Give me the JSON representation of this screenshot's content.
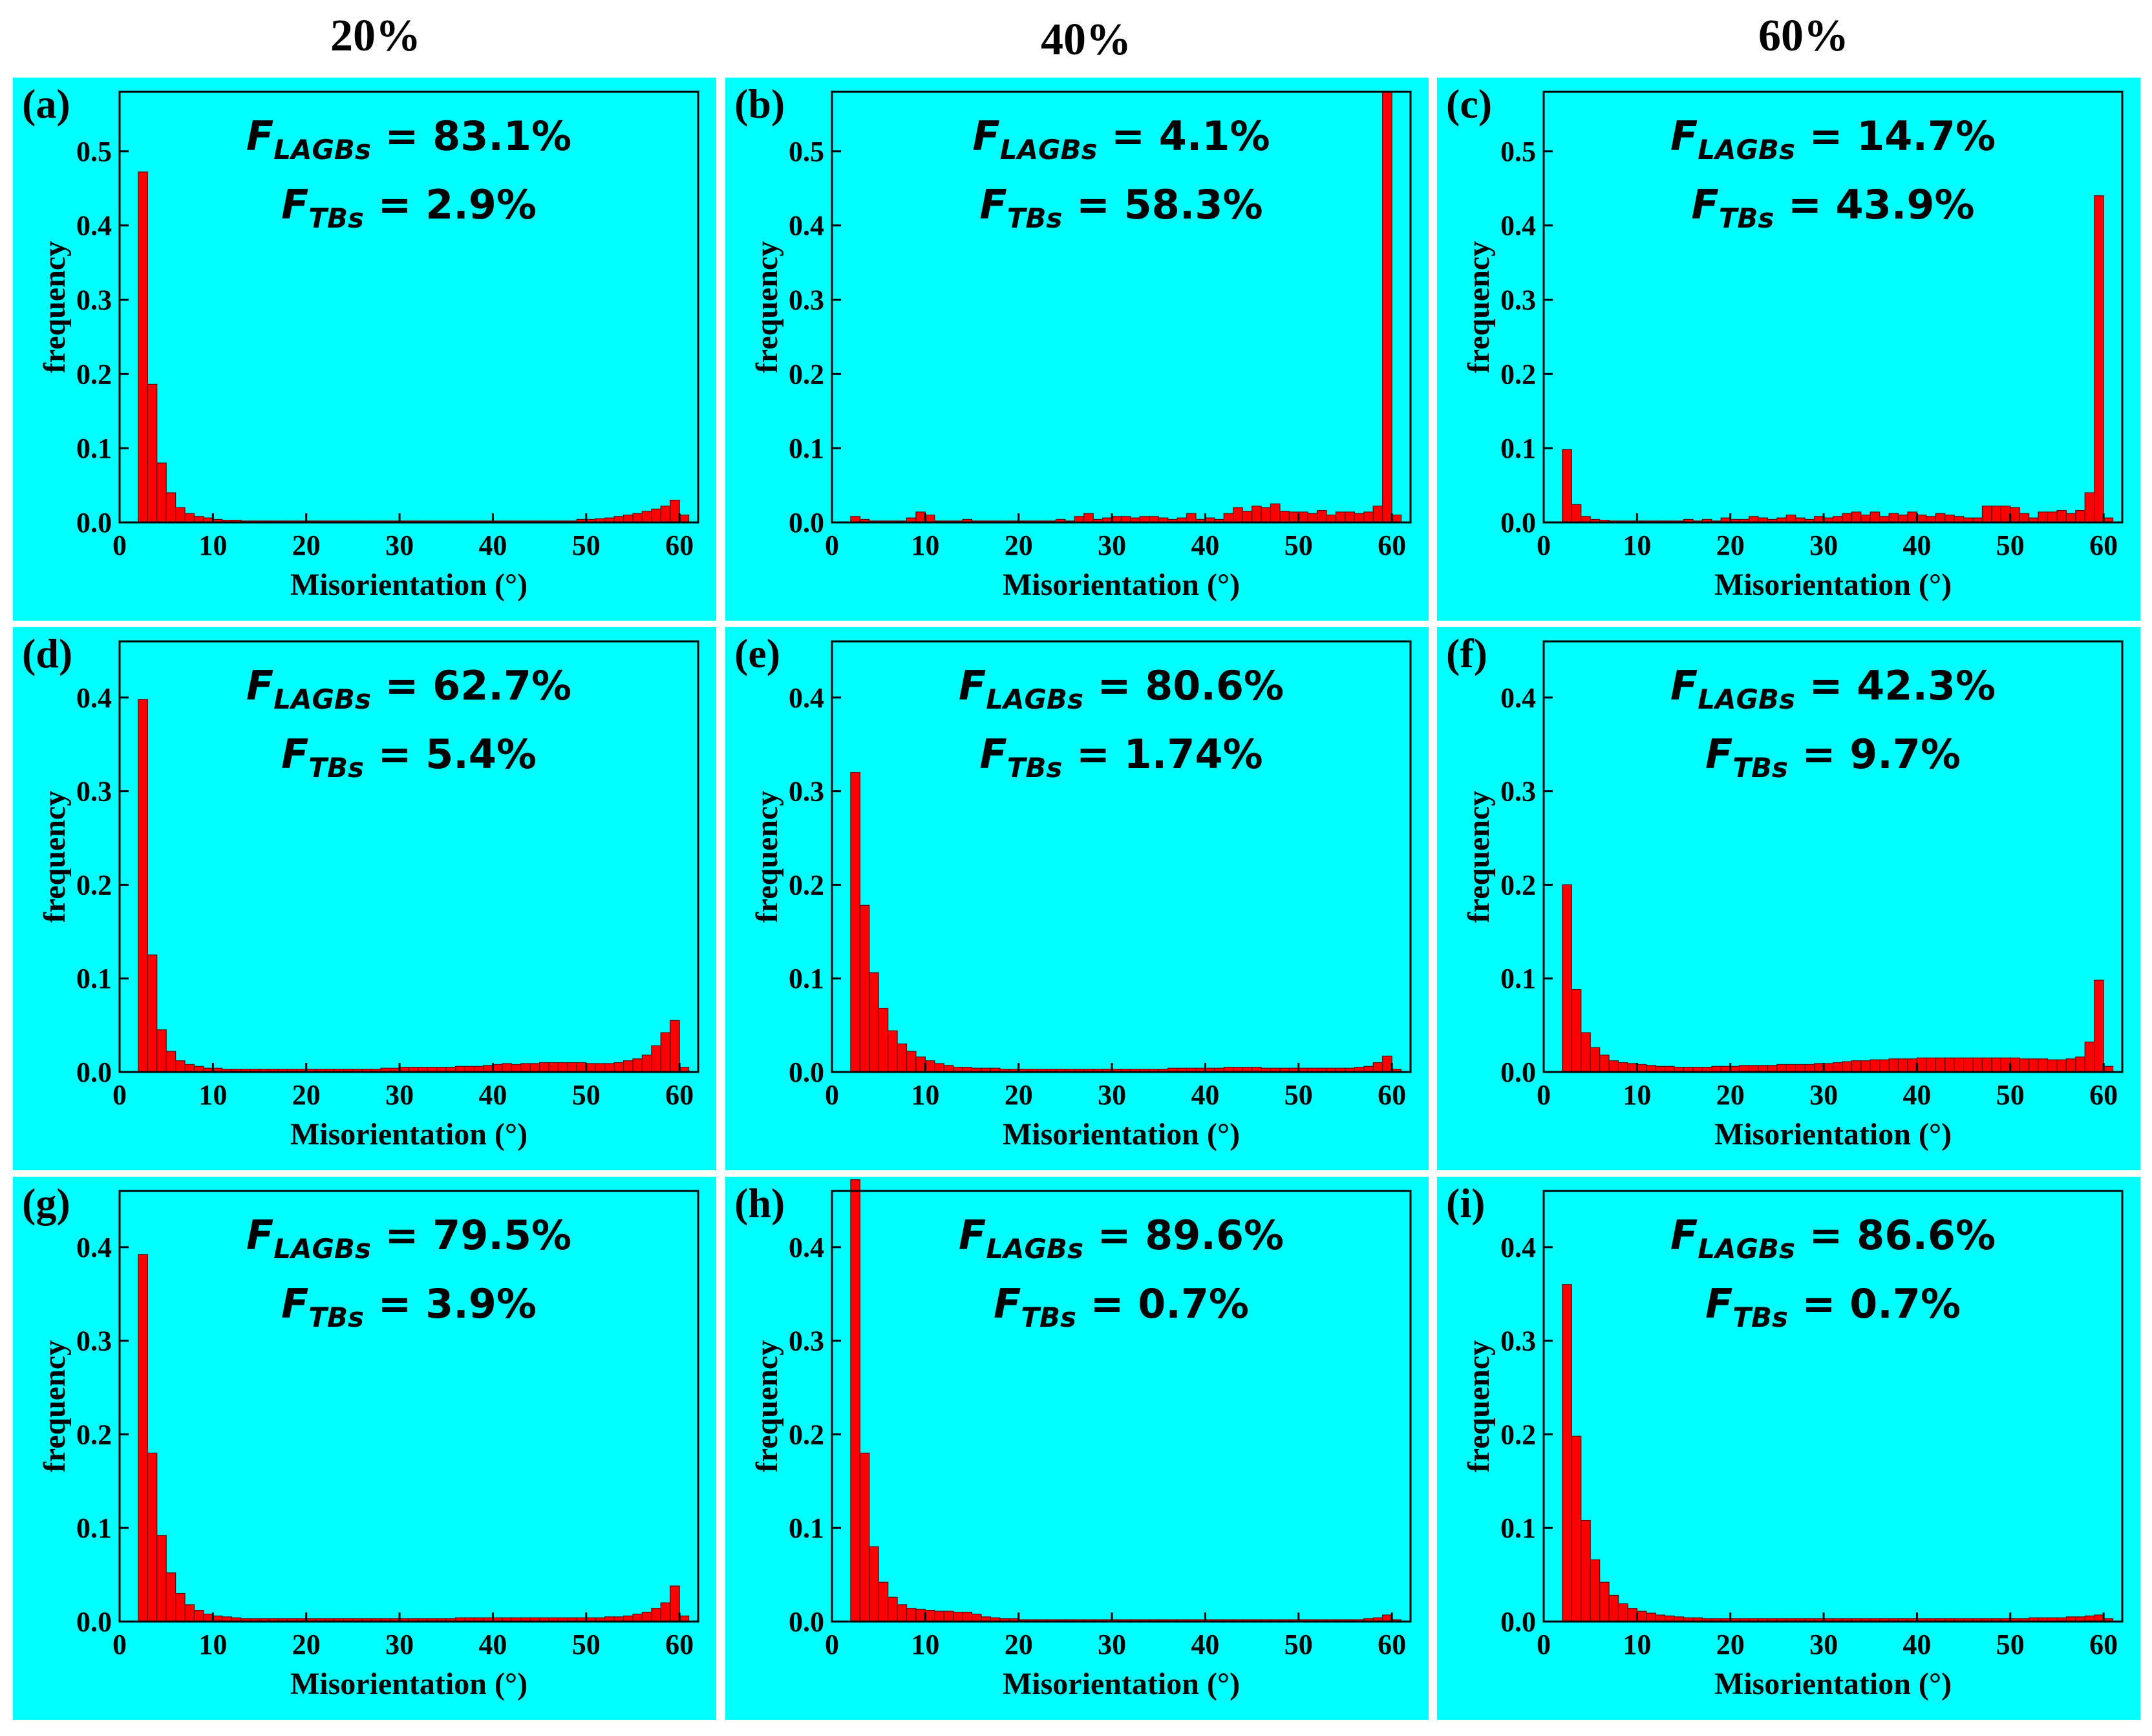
{
  "figure": {
    "column_titles": [
      "20%",
      "40%",
      "60%"
    ]
  },
  "chart_data": [
    {
      "type": "bar",
      "label": "(a)",
      "title": "",
      "xlabel": "Misorientation (°)",
      "ylabel": "frequency",
      "xlim": [
        0,
        62
      ],
      "ylim": [
        0,
        0.58
      ],
      "xticks": [
        0,
        10,
        20,
        30,
        40,
        50,
        60
      ],
      "yticks": [
        0.0,
        0.1,
        0.2,
        0.3,
        0.4,
        0.5
      ],
      "ytick_labels": [
        "0.0",
        "0.1",
        "0.2",
        "0.3",
        "0.4",
        "0.5"
      ],
      "annotation": {
        "lagb_label": "F",
        "lagb_sub": "LAGBs",
        "lagb_value": " = 83.1%",
        "tb_label": "F",
        "tb_sub": "TBs",
        "tb_value": " = 2.9%"
      },
      "bin_start": 2,
      "bin_width": 1,
      "values": [
        0.472,
        0.186,
        0.08,
        0.04,
        0.02,
        0.012,
        0.008,
        0.006,
        0.004,
        0.003,
        0.003,
        0.002,
        0.002,
        0.002,
        0.002,
        0.002,
        0.002,
        0.002,
        0.002,
        0.002,
        0.002,
        0.002,
        0.002,
        0.002,
        0.002,
        0.002,
        0.002,
        0.002,
        0.002,
        0.002,
        0.002,
        0.002,
        0.002,
        0.002,
        0.002,
        0.002,
        0.002,
        0.002,
        0.002,
        0.002,
        0.002,
        0.002,
        0.002,
        0.002,
        0.002,
        0.002,
        0.002,
        0.004,
        0.004,
        0.005,
        0.006,
        0.008,
        0.01,
        0.012,
        0.015,
        0.018,
        0.022,
        0.03,
        0.01
      ]
    },
    {
      "type": "bar",
      "label": "(b)",
      "title": "",
      "xlabel": "Misorientation (°)",
      "ylabel": "frequency",
      "xlim": [
        0,
        62
      ],
      "ylim": [
        0,
        0.58
      ],
      "xticks": [
        0,
        10,
        20,
        30,
        40,
        50,
        60
      ],
      "yticks": [
        0.0,
        0.1,
        0.2,
        0.3,
        0.4,
        0.5
      ],
      "ytick_labels": [
        "0.0",
        "0.1",
        "0.2",
        "0.3",
        "0.4",
        "0.5"
      ],
      "annotation": {
        "lagb_label": "F",
        "lagb_sub": "LAGBs",
        "lagb_value": " = 4.1%",
        "tb_label": "F",
        "tb_sub": "TBs",
        "tb_value": " = 58.3%"
      },
      "bin_start": 2,
      "bin_width": 1,
      "values": [
        0.008,
        0.004,
        0.002,
        0.002,
        0.002,
        0.002,
        0.006,
        0.014,
        0.01,
        0.002,
        0.002,
        0.002,
        0.004,
        0.002,
        0.002,
        0.002,
        0.002,
        0.002,
        0.002,
        0.002,
        0.002,
        0.002,
        0.004,
        0.002,
        0.008,
        0.012,
        0.004,
        0.006,
        0.008,
        0.008,
        0.006,
        0.008,
        0.008,
        0.006,
        0.004,
        0.006,
        0.012,
        0.004,
        0.006,
        0.004,
        0.012,
        0.02,
        0.015,
        0.022,
        0.02,
        0.025,
        0.015,
        0.014,
        0.014,
        0.012,
        0.016,
        0.01,
        0.014,
        0.014,
        0.012,
        0.014,
        0.022,
        0.58,
        0.01
      ]
    },
    {
      "type": "bar",
      "label": "(c)",
      "title": "",
      "xlabel": "Misorientation (°)",
      "ylabel": "frequency",
      "xlim": [
        0,
        62
      ],
      "ylim": [
        0,
        0.58
      ],
      "xticks": [
        0,
        10,
        20,
        30,
        40,
        50,
        60
      ],
      "yticks": [
        0.0,
        0.1,
        0.2,
        0.3,
        0.4,
        0.5
      ],
      "ytick_labels": [
        "0.0",
        "0.1",
        "0.2",
        "0.3",
        "0.4",
        "0.5"
      ],
      "annotation": {
        "lagb_label": "F",
        "lagb_sub": "LAGBs",
        "lagb_value": " = 14.7%",
        "tb_label": "F",
        "tb_sub": "TBs",
        "tb_value": " = 43.9%"
      },
      "bin_start": 2,
      "bin_width": 1,
      "values": [
        0.098,
        0.024,
        0.008,
        0.004,
        0.003,
        0.002,
        0.002,
        0.002,
        0.002,
        0.002,
        0.002,
        0.002,
        0.002,
        0.004,
        0.002,
        0.004,
        0.002,
        0.006,
        0.004,
        0.004,
        0.008,
        0.006,
        0.004,
        0.006,
        0.01,
        0.006,
        0.004,
        0.008,
        0.006,
        0.008,
        0.012,
        0.014,
        0.01,
        0.014,
        0.008,
        0.012,
        0.01,
        0.014,
        0.01,
        0.008,
        0.012,
        0.01,
        0.008,
        0.006,
        0.006,
        0.022,
        0.022,
        0.022,
        0.02,
        0.012,
        0.006,
        0.014,
        0.014,
        0.016,
        0.012,
        0.016,
        0.04,
        0.44,
        0.006
      ]
    },
    {
      "type": "bar",
      "label": "(d)",
      "title": "",
      "xlabel": "Misorientation (°)",
      "ylabel": "frequency",
      "xlim": [
        0,
        62
      ],
      "ylim": [
        0,
        0.46
      ],
      "xticks": [
        0,
        10,
        20,
        30,
        40,
        50,
        60
      ],
      "yticks": [
        0.0,
        0.1,
        0.2,
        0.3,
        0.4
      ],
      "ytick_labels": [
        "0.0",
        "0.1",
        "0.2",
        "0.3",
        "0.4"
      ],
      "annotation": {
        "lagb_label": "F",
        "lagb_sub": "LAGBs",
        "lagb_value": " = 62.7%",
        "tb_label": "F",
        "tb_sub": "TBs",
        "tb_value": " = 5.4%"
      },
      "bin_start": 2,
      "bin_width": 1,
      "values": [
        0.398,
        0.125,
        0.045,
        0.022,
        0.012,
        0.008,
        0.006,
        0.004,
        0.004,
        0.003,
        0.003,
        0.003,
        0.003,
        0.003,
        0.003,
        0.003,
        0.003,
        0.003,
        0.003,
        0.003,
        0.003,
        0.003,
        0.003,
        0.003,
        0.003,
        0.003,
        0.004,
        0.004,
        0.005,
        0.005,
        0.005,
        0.005,
        0.005,
        0.005,
        0.006,
        0.006,
        0.006,
        0.007,
        0.008,
        0.009,
        0.008,
        0.009,
        0.009,
        0.01,
        0.01,
        0.01,
        0.01,
        0.01,
        0.009,
        0.009,
        0.009,
        0.01,
        0.012,
        0.014,
        0.018,
        0.028,
        0.042,
        0.055,
        0.005
      ]
    },
    {
      "type": "bar",
      "label": "(e)",
      "title": "",
      "xlabel": "Misorientation (°)",
      "ylabel": "frequency",
      "xlim": [
        0,
        62
      ],
      "ylim": [
        0,
        0.46
      ],
      "xticks": [
        0,
        10,
        20,
        30,
        40,
        50,
        60
      ],
      "yticks": [
        0.0,
        0.1,
        0.2,
        0.3,
        0.4
      ],
      "ytick_labels": [
        "0.0",
        "0.1",
        "0.2",
        "0.3",
        "0.4"
      ],
      "annotation": {
        "lagb_label": "F",
        "lagb_sub": "LAGBs",
        "lagb_value": " = 80.6%",
        "tb_label": "F",
        "tb_sub": "TBs",
        "tb_value": " = 1.74%"
      },
      "bin_start": 2,
      "bin_width": 1,
      "values": [
        0.32,
        0.178,
        0.106,
        0.068,
        0.044,
        0.03,
        0.022,
        0.016,
        0.012,
        0.009,
        0.007,
        0.005,
        0.005,
        0.004,
        0.004,
        0.004,
        0.003,
        0.003,
        0.003,
        0.003,
        0.003,
        0.003,
        0.003,
        0.003,
        0.003,
        0.003,
        0.003,
        0.003,
        0.003,
        0.003,
        0.003,
        0.003,
        0.003,
        0.003,
        0.004,
        0.004,
        0.004,
        0.004,
        0.004,
        0.004,
        0.005,
        0.005,
        0.005,
        0.005,
        0.004,
        0.004,
        0.004,
        0.004,
        0.004,
        0.004,
        0.004,
        0.004,
        0.004,
        0.004,
        0.005,
        0.006,
        0.01,
        0.017,
        0.003
      ]
    },
    {
      "type": "bar",
      "label": "(f)",
      "title": "",
      "xlabel": "Misorientation (°)",
      "ylabel": "frequency",
      "xlim": [
        0,
        62
      ],
      "ylim": [
        0,
        0.46
      ],
      "xticks": [
        0,
        10,
        20,
        30,
        40,
        50,
        60
      ],
      "yticks": [
        0.0,
        0.1,
        0.2,
        0.3,
        0.4
      ],
      "ytick_labels": [
        "0.0",
        "0.1",
        "0.2",
        "0.3",
        "0.4"
      ],
      "annotation": {
        "lagb_label": "F",
        "lagb_sub": "LAGBs",
        "lagb_value": " = 42.3%",
        "tb_label": "F",
        "tb_sub": "TBs",
        "tb_value": " = 9.7%"
      },
      "bin_start": 2,
      "bin_width": 1,
      "values": [
        0.2,
        0.088,
        0.042,
        0.026,
        0.018,
        0.012,
        0.01,
        0.009,
        0.008,
        0.007,
        0.006,
        0.006,
        0.005,
        0.005,
        0.005,
        0.005,
        0.006,
        0.006,
        0.006,
        0.007,
        0.007,
        0.007,
        0.007,
        0.008,
        0.008,
        0.008,
        0.008,
        0.009,
        0.009,
        0.01,
        0.011,
        0.012,
        0.012,
        0.013,
        0.013,
        0.014,
        0.014,
        0.014,
        0.015,
        0.015,
        0.015,
        0.015,
        0.015,
        0.015,
        0.015,
        0.015,
        0.015,
        0.015,
        0.015,
        0.014,
        0.014,
        0.014,
        0.013,
        0.013,
        0.014,
        0.016,
        0.032,
        0.098,
        0.006
      ]
    },
    {
      "type": "bar",
      "label": "(g)",
      "title": "",
      "xlabel": "Misorientation (°)",
      "ylabel": "frequency",
      "xlim": [
        0,
        62
      ],
      "ylim": [
        0,
        0.46
      ],
      "xticks": [
        0,
        10,
        20,
        30,
        40,
        50,
        60
      ],
      "yticks": [
        0.0,
        0.1,
        0.2,
        0.3,
        0.4
      ],
      "ytick_labels": [
        "0.0",
        "0.1",
        "0.2",
        "0.3",
        "0.4"
      ],
      "annotation": {
        "lagb_label": "F",
        "lagb_sub": "LAGBs",
        "lagb_value": " = 79.5%",
        "tb_label": "F",
        "tb_sub": "TBs",
        "tb_value": " = 3.9%"
      },
      "bin_start": 2,
      "bin_width": 1,
      "values": [
        0.392,
        0.18,
        0.092,
        0.052,
        0.03,
        0.018,
        0.012,
        0.008,
        0.006,
        0.005,
        0.004,
        0.003,
        0.003,
        0.003,
        0.003,
        0.003,
        0.003,
        0.003,
        0.003,
        0.003,
        0.003,
        0.003,
        0.003,
        0.003,
        0.003,
        0.003,
        0.003,
        0.003,
        0.003,
        0.003,
        0.003,
        0.003,
        0.003,
        0.003,
        0.004,
        0.004,
        0.004,
        0.004,
        0.004,
        0.004,
        0.004,
        0.004,
        0.004,
        0.004,
        0.004,
        0.004,
        0.004,
        0.004,
        0.004,
        0.004,
        0.005,
        0.005,
        0.006,
        0.008,
        0.01,
        0.014,
        0.02,
        0.038,
        0.006
      ]
    },
    {
      "type": "bar",
      "label": "(h)",
      "title": "",
      "xlabel": "Misorientation (°)",
      "ylabel": "frequency",
      "xlim": [
        0,
        62
      ],
      "ylim": [
        0,
        0.46
      ],
      "xticks": [
        0,
        10,
        20,
        30,
        40,
        50,
        60
      ],
      "yticks": [
        0.0,
        0.1,
        0.2,
        0.3,
        0.4
      ],
      "ytick_labels": [
        "0.0",
        "0.1",
        "0.2",
        "0.3",
        "0.4"
      ],
      "annotation": {
        "lagb_label": "F",
        "lagb_sub": "LAGBs",
        "lagb_value": " = 89.6%",
        "tb_label": "F",
        "tb_sub": "TBs",
        "tb_value": " = 0.7%"
      },
      "bin_start": 2,
      "bin_width": 1,
      "values": [
        0.472,
        0.18,
        0.08,
        0.042,
        0.026,
        0.018,
        0.014,
        0.013,
        0.012,
        0.011,
        0.011,
        0.01,
        0.01,
        0.008,
        0.005,
        0.004,
        0.003,
        0.003,
        0.002,
        0.002,
        0.002,
        0.002,
        0.002,
        0.002,
        0.002,
        0.002,
        0.002,
        0.002,
        0.002,
        0.002,
        0.002,
        0.002,
        0.002,
        0.002,
        0.002,
        0.002,
        0.002,
        0.002,
        0.002,
        0.002,
        0.002,
        0.002,
        0.002,
        0.002,
        0.002,
        0.002,
        0.002,
        0.002,
        0.002,
        0.002,
        0.002,
        0.002,
        0.002,
        0.002,
        0.002,
        0.003,
        0.004,
        0.007,
        0.002
      ]
    },
    {
      "type": "bar",
      "label": "(i)",
      "title": "",
      "xlabel": "Misorientation (°)",
      "ylabel": "frequency",
      "xlim": [
        0,
        62
      ],
      "ylim": [
        0,
        0.46
      ],
      "xticks": [
        0,
        10,
        20,
        30,
        40,
        50,
        60
      ],
      "yticks": [
        0.0,
        0.1,
        0.2,
        0.3,
        0.4
      ],
      "ytick_labels": [
        "0.0",
        "0.1",
        "0.2",
        "0.3",
        "0.4"
      ],
      "annotation": {
        "lagb_label": "F",
        "lagb_sub": "LAGBs",
        "lagb_value": " = 86.6%",
        "tb_label": "F",
        "tb_sub": "TBs",
        "tb_value": " = 0.7%"
      },
      "bin_start": 2,
      "bin_width": 1,
      "values": [
        0.36,
        0.198,
        0.108,
        0.066,
        0.042,
        0.028,
        0.019,
        0.014,
        0.011,
        0.009,
        0.007,
        0.006,
        0.005,
        0.004,
        0.004,
        0.003,
        0.003,
        0.003,
        0.003,
        0.003,
        0.003,
        0.003,
        0.003,
        0.003,
        0.003,
        0.003,
        0.003,
        0.003,
        0.003,
        0.003,
        0.003,
        0.003,
        0.003,
        0.003,
        0.003,
        0.003,
        0.003,
        0.003,
        0.003,
        0.003,
        0.003,
        0.003,
        0.003,
        0.003,
        0.003,
        0.003,
        0.003,
        0.003,
        0.003,
        0.003,
        0.004,
        0.004,
        0.004,
        0.004,
        0.005,
        0.005,
        0.006,
        0.007,
        0.003
      ]
    }
  ]
}
